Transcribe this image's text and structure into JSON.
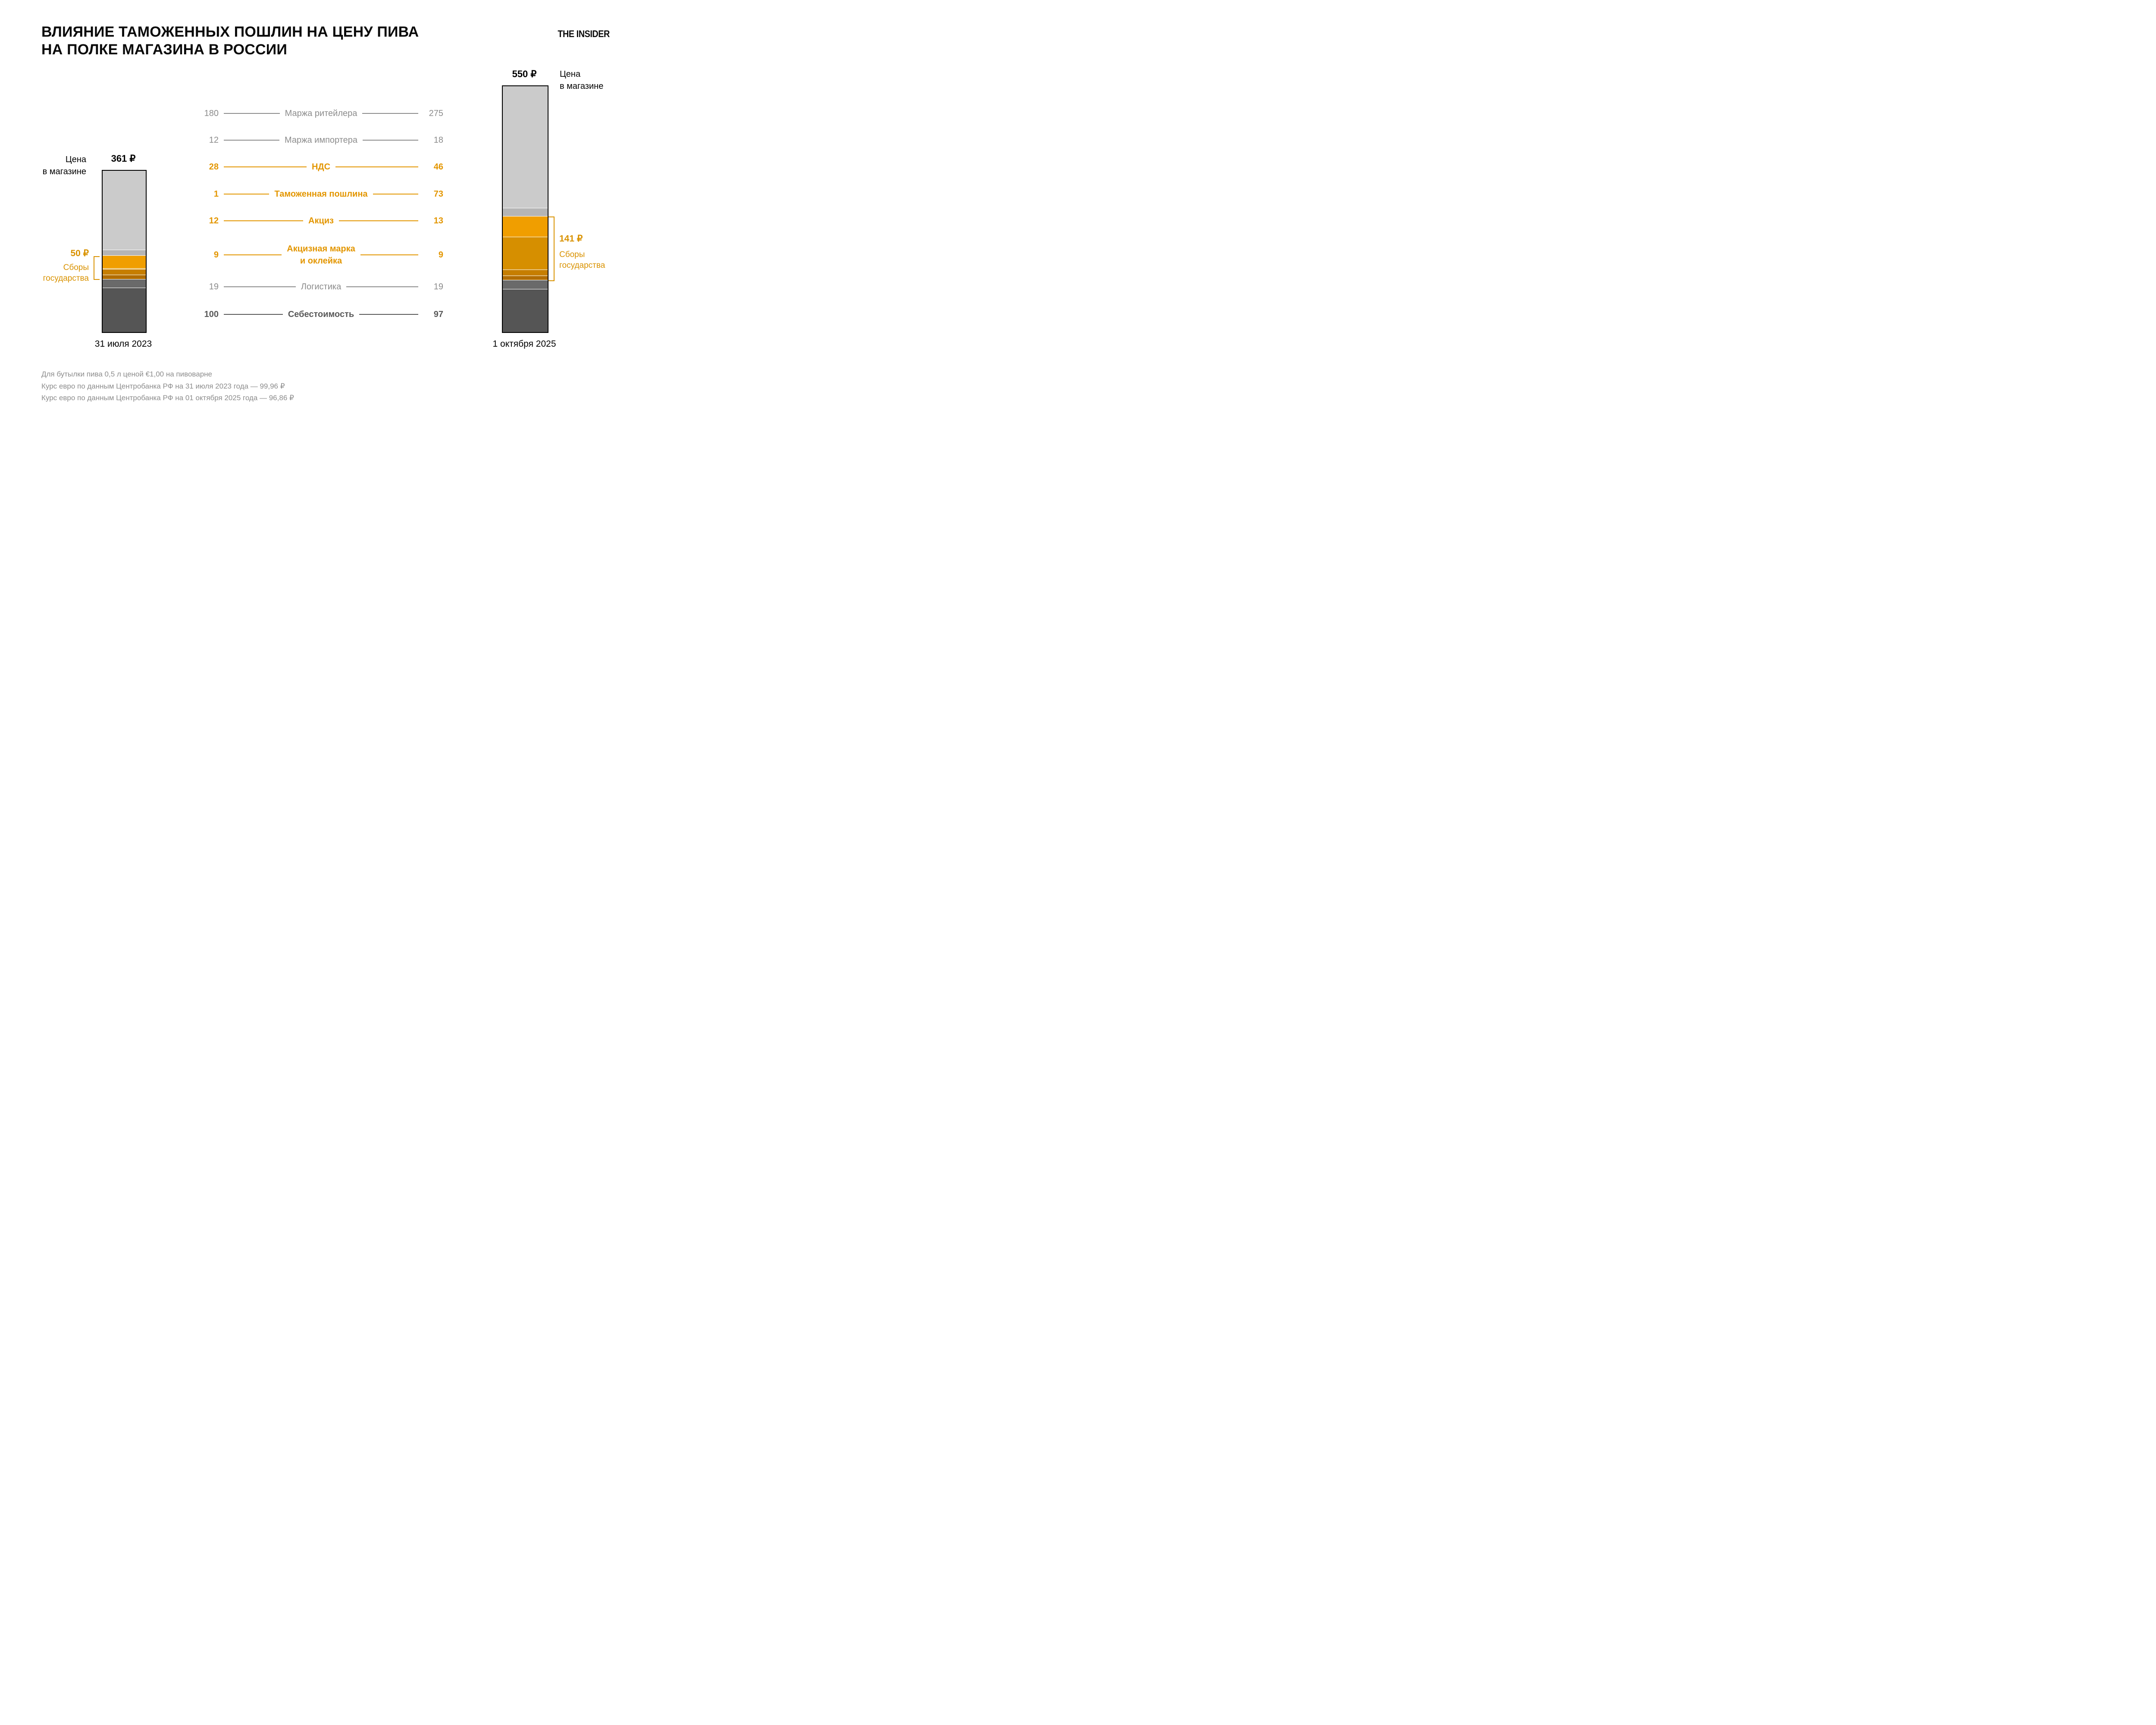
{
  "title": "ВЛИЯНИЕ ТАМОЖЕННЫХ ПОШЛИН НА ЦЕНУ ПИВА\nНА ПОЛКЕ МАГАЗИНА В РОССИИ",
  "logo": "THE INSIDER",
  "price_caption": "Цена\nв магазине",
  "bars": {
    "left": {
      "total": "361 ₽",
      "date": "31 июля 2023",
      "fees_amount": "50 ₽",
      "fees_caption": "Сборы\nгосударства"
    },
    "right": {
      "total": "550 ₽",
      "date": "1 октября 2025",
      "fees_amount": "141 ₽",
      "fees_caption": "Сборы\nгосударства"
    }
  },
  "chart_data": {
    "type": "bar",
    "subtype": "stacked-comparison",
    "title": "Влияние таможенных пошлин на цену пива на полке магазина в России",
    "unit": "₽",
    "categories": [
      "31 июля 2023",
      "1 октября 2025"
    ],
    "totals": [
      361,
      550
    ],
    "government_fees_totals": [
      50,
      141
    ],
    "legend_position": "center",
    "axis": "none",
    "series": [
      {
        "key": "retailer-margin",
        "label_lines": [
          "Маржа ритейлера"
        ],
        "values": [
          180,
          275
        ],
        "color": "#cbcbcb",
        "emphasis": "gray"
      },
      {
        "key": "importer-margin",
        "label_lines": [
          "Маржа импортера"
        ],
        "values": [
          12,
          18
        ],
        "color": "#b5b5b5",
        "emphasis": "gray"
      },
      {
        "key": "vat",
        "label_lines": [
          "НДС"
        ],
        "values": [
          28,
          46
        ],
        "color": "#f09e00",
        "emphasis": "orange"
      },
      {
        "key": "customs-duty",
        "label_lines": [
          "Таможенная пошлина"
        ],
        "values": [
          1,
          73
        ],
        "color": "#d68f00",
        "emphasis": "orange"
      },
      {
        "key": "excise",
        "label_lines": [
          "Акциз"
        ],
        "values": [
          12,
          13
        ],
        "color": "#c67e00",
        "emphasis": "orange"
      },
      {
        "key": "excise-stamp",
        "label_lines": [
          "Акцизная марка",
          "и оклейка"
        ],
        "values": [
          9,
          9
        ],
        "color": "#b26d00",
        "emphasis": "orange"
      },
      {
        "key": "logistics",
        "label_lines": [
          "Логистика"
        ],
        "values": [
          19,
          19
        ],
        "color": "#6a6a6a",
        "emphasis": "gray"
      },
      {
        "key": "production-cost",
        "label_lines": [
          "Себестоимость"
        ],
        "values": [
          100,
          97
        ],
        "color": "#555555",
        "emphasis": "dark"
      }
    ]
  },
  "footnotes": [
    "Для бутылки пива 0,5 л ценой €1,00 на пивоварне",
    "Курс евро по данным Центробанка РФ на 31 июля 2023 года — 99,96 ₽",
    "Курс евро по данным Центробанка РФ на 01 октября 2025 года — 96,86 ₽"
  ]
}
